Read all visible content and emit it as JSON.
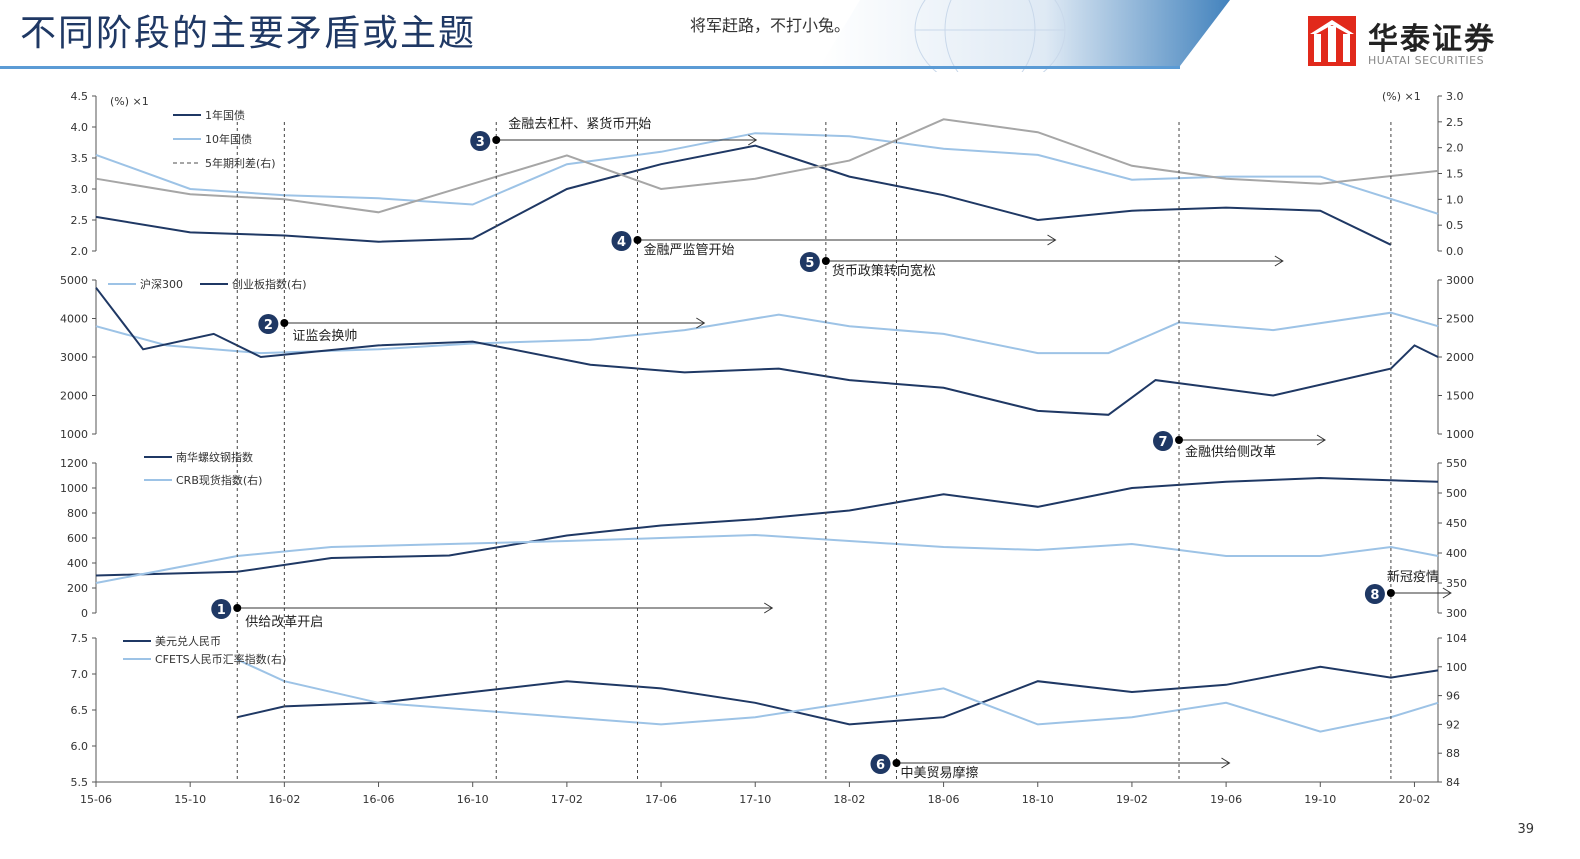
{
  "header": {
    "title": "不同阶段的主要矛盾或主题",
    "slogan": "将军赶路，不打小兔。",
    "logo_cn": "华泰证券",
    "logo_en": "HUATAI SECURITIES",
    "page_number": "39"
  },
  "colors": {
    "dark": "#1f3864",
    "light": "#9dc3e6",
    "gray": "#a6a6a6",
    "title": "#1f3864",
    "brand_red": "#e1291b"
  },
  "chart_data": [
    {
      "type": "line",
      "units_left": "(%) ×1",
      "units_right": "(%) ×1",
      "ylim_left": [
        2.0,
        4.5
      ],
      "ylim_right": [
        0.0,
        3.0
      ],
      "yticks_left": [
        "4.5",
        "4.0",
        "3.5",
        "3.0",
        "2.5",
        "2.0"
      ],
      "yticks_right": [
        "3.0",
        "2.5",
        "2.0",
        "1.5",
        "1.0",
        "0.5",
        "0.0"
      ],
      "series": [
        {
          "name": "1年国债",
          "axis": "left",
          "color": "#1f3864",
          "x": [
            "15-06",
            "15-10",
            "16-02",
            "16-06",
            "16-10",
            "17-02",
            "17-06",
            "17-10",
            "18-02",
            "18-06",
            "18-10",
            "19-02",
            "19-06",
            "19-10",
            "20-01"
          ],
          "values": [
            2.55,
            2.3,
            2.25,
            2.15,
            2.2,
            3.0,
            3.4,
            3.7,
            3.2,
            2.9,
            2.5,
            2.65,
            2.7,
            2.65,
            2.1
          ]
        },
        {
          "name": "10年国债",
          "axis": "left",
          "color": "#9dc3e6",
          "x": [
            "15-06",
            "15-10",
            "16-02",
            "16-06",
            "16-10",
            "17-02",
            "17-06",
            "17-10",
            "18-02",
            "18-06",
            "18-10",
            "19-02",
            "19-06",
            "19-10",
            "20-03"
          ],
          "values": [
            3.55,
            3.0,
            2.9,
            2.85,
            2.75,
            3.4,
            3.6,
            3.9,
            3.85,
            3.65,
            3.55,
            3.15,
            3.2,
            3.2,
            2.6
          ]
        },
        {
          "name": "5年期利差(右)",
          "axis": "right",
          "color": "#a6a6a6",
          "x": [
            "15-06",
            "15-10",
            "16-02",
            "16-06",
            "16-10",
            "17-02",
            "17-06",
            "17-10",
            "18-02",
            "18-06",
            "18-10",
            "19-02",
            "19-06",
            "19-10",
            "20-03"
          ],
          "values": [
            1.4,
            1.1,
            1.0,
            0.75,
            1.3,
            1.85,
            1.2,
            1.4,
            1.75,
            2.55,
            2.3,
            1.65,
            1.4,
            1.3,
            1.55
          ]
        }
      ]
    },
    {
      "type": "line",
      "ylim_left": [
        1000,
        5000
      ],
      "ylim_right": [
        1000,
        3000
      ],
      "yticks_left": [
        "5000",
        "4000",
        "3000",
        "2000",
        "1000"
      ],
      "yticks_right": [
        "3000",
        "2500",
        "2000",
        "1500",
        "1000"
      ],
      "series": [
        {
          "name": "沪深300",
          "axis": "left",
          "color": "#9dc3e6",
          "x": [
            "15-06",
            "15-09",
            "16-01",
            "16-06",
            "16-10",
            "17-03",
            "17-07",
            "17-11",
            "18-02",
            "18-06",
            "18-10",
            "19-01",
            "19-04",
            "19-08",
            "20-01",
            "20-03"
          ],
          "values": [
            3800,
            3300,
            3100,
            3200,
            3350,
            3450,
            3700,
            4100,
            3800,
            3600,
            3100,
            3100,
            3900,
            3700,
            4150,
            3800
          ]
        },
        {
          "name": "创业板指数(右)",
          "axis": "right",
          "color": "#1f3864",
          "x": [
            "15-06",
            "15-08",
            "15-11",
            "16-01",
            "16-06",
            "16-10",
            "17-03",
            "17-07",
            "17-11",
            "18-02",
            "18-06",
            "18-10",
            "19-01",
            "19-03",
            "19-08",
            "20-01",
            "20-02",
            "20-03"
          ],
          "values": [
            2900,
            2100,
            2300,
            2000,
            2150,
            2200,
            1900,
            1800,
            1850,
            1700,
            1600,
            1300,
            1250,
            1700,
            1500,
            1850,
            2150,
            2000
          ]
        }
      ]
    },
    {
      "type": "line",
      "ylim_left": [
        0,
        1200
      ],
      "ylim_right": [
        300,
        550
      ],
      "yticks_left": [
        "1200",
        "1000",
        "800",
        "600",
        "400",
        "200",
        "0"
      ],
      "yticks_right": [
        "550",
        "500",
        "450",
        "400",
        "350",
        "300"
      ],
      "series": [
        {
          "name": "南华螺纹钢指数",
          "axis": "left",
          "color": "#1f3864",
          "x": [
            "15-06",
            "15-12",
            "16-04",
            "16-09",
            "17-02",
            "17-06",
            "17-10",
            "18-02",
            "18-06",
            "18-10",
            "19-02",
            "19-06",
            "19-10",
            "20-03"
          ],
          "values": [
            300,
            330,
            440,
            460,
            620,
            700,
            750,
            820,
            950,
            850,
            1000,
            1050,
            1080,
            1050
          ]
        },
        {
          "name": "CRB现货指数(右)",
          "axis": "right",
          "color": "#9dc3e6",
          "x": [
            "15-06",
            "15-12",
            "16-04",
            "16-09",
            "17-02",
            "17-06",
            "17-10",
            "18-02",
            "18-06",
            "18-10",
            "19-02",
            "19-06",
            "19-10",
            "20-01",
            "20-03"
          ],
          "values": [
            350,
            395,
            410,
            415,
            420,
            425,
            430,
            420,
            410,
            405,
            415,
            395,
            395,
            410,
            395
          ]
        }
      ]
    },
    {
      "type": "line",
      "ylim_left": [
        5.5,
        7.5
      ],
      "ylim_right": [
        84,
        104
      ],
      "yticks_left": [
        "7.5",
        "7.0",
        "6.5",
        "6.0",
        "5.5"
      ],
      "yticks_right": [
        "104",
        "100",
        "96",
        "92",
        "88",
        "84"
      ],
      "series": [
        {
          "name": "美元兑人民币",
          "axis": "left",
          "color": "#1f3864",
          "x": [
            "15-12",
            "16-02",
            "16-06",
            "16-10",
            "17-02",
            "17-06",
            "17-10",
            "18-02",
            "18-06",
            "18-10",
            "19-02",
            "19-06",
            "19-10",
            "20-01",
            "20-03"
          ],
          "values": [
            6.4,
            6.55,
            6.6,
            6.75,
            6.9,
            6.8,
            6.6,
            6.3,
            6.4,
            6.9,
            6.75,
            6.85,
            7.1,
            6.95,
            7.05
          ]
        },
        {
          "name": "CFETS人民币汇率指数(右)",
          "axis": "right",
          "color": "#9dc3e6",
          "x": [
            "15-12",
            "16-02",
            "16-06",
            "16-10",
            "17-02",
            "17-06",
            "17-10",
            "18-02",
            "18-06",
            "18-10",
            "19-02",
            "19-06",
            "19-10",
            "20-01",
            "20-03"
          ],
          "values": [
            101,
            98,
            95,
            94,
            93,
            92,
            93,
            95,
            97,
            92,
            93,
            95,
            91,
            93,
            95
          ]
        }
      ]
    }
  ],
  "x_ticks": [
    "15-06",
    "15-10",
    "16-02",
    "16-06",
    "16-10",
    "17-02",
    "17-06",
    "17-10",
    "18-02",
    "18-06",
    "18-10",
    "19-02",
    "19-06",
    "19-10",
    "20-02"
  ],
  "events": [
    {
      "num": "1",
      "label": "供给改革开启",
      "date": "15-12"
    },
    {
      "num": "2",
      "label": "证监会换帅",
      "date": "16-02"
    },
    {
      "num": "3",
      "label": "金融去杠杆、紧货币开始",
      "date": "16-11"
    },
    {
      "num": "4",
      "label": "金融严监管开始",
      "date": "17-05"
    },
    {
      "num": "5",
      "label": "货币政策转向宽松",
      "date": "18-01"
    },
    {
      "num": "6",
      "label": "中美贸易摩擦",
      "date": "18-04"
    },
    {
      "num": "7",
      "label": "金融供给侧改革",
      "date": "19-04"
    },
    {
      "num": "8",
      "label": "新冠疫情",
      "date": "20-01"
    }
  ]
}
